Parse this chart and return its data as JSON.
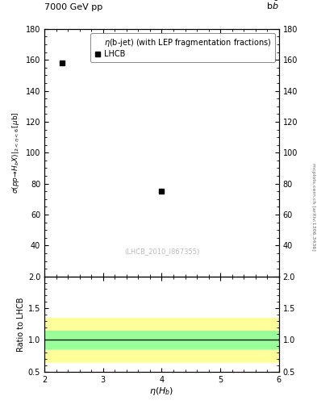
{
  "title_left": "7000 GeV pp",
  "title_right": "b$\\bar{\\text{b}}$",
  "main_ylabel": "$\\sigma(pp\\!\\rightarrow\\!H_b X)|_{2<\\eta<6}\\,[\\mu\\text{b}]$",
  "ratio_ylabel": "Ratio to LHCB",
  "xlabel": "$\\eta(H_b)$",
  "legend_line1": "$\\eta$(b-jet) (with LEP fragmentation fractions)",
  "legend_label": "LHCB",
  "watermark": "(LHCB_2010_I867355)",
  "side_text": "mcplots.cern.ch [arXiv:1306.3436]",
  "data_x": [
    2.3,
    4.0
  ],
  "data_y": [
    158.0,
    75.0
  ],
  "xlim": [
    2,
    6
  ],
  "ylim_main": [
    20,
    180
  ],
  "ylim_ratio": [
    0.5,
    2.0
  ],
  "yticks_main": [
    40,
    60,
    80,
    100,
    120,
    140,
    160,
    180
  ],
  "yticks_ratio": [
    0.5,
    1.0,
    1.5,
    2.0
  ],
  "xticks": [
    2,
    3,
    4,
    5,
    6
  ],
  "yellow_band": [
    0.65,
    1.35
  ],
  "green_band": [
    0.85,
    1.15
  ],
  "marker_color": "black",
  "marker_style": "s",
  "marker_size": 5,
  "background_color": "#ffffff",
  "yellow_color": "#ffff99",
  "green_color": "#99ff99"
}
